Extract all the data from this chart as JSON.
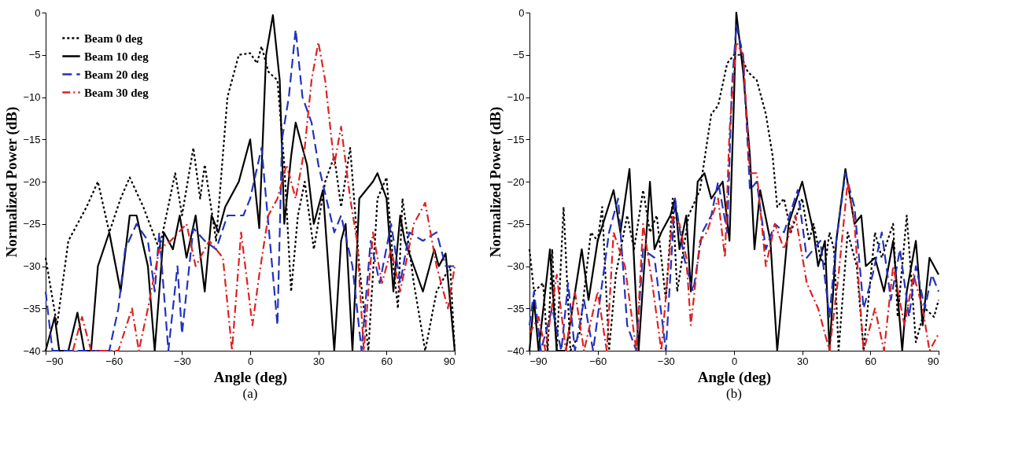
{
  "chart_data": [
    {
      "type": "line",
      "xlabel": "Angle (deg)",
      "ylabel": "Normalized Power (dB)",
      "annotations": [
        "(a)"
      ],
      "xlim": [
        -90,
        90
      ],
      "xticks": [
        -90,
        -60,
        -30,
        0,
        30,
        60,
        90
      ],
      "ylim": [
        -40,
        0
      ],
      "yticks": [
        -40,
        -35,
        -30,
        -25,
        -20,
        -15,
        -10,
        -5,
        0
      ],
      "grid": false,
      "legend": "top left",
      "marker": "none",
      "series": [
        {
          "name": "Beam 0 deg",
          "color": "#000000",
          "line_style": "dotted",
          "x": [
            -90,
            -85,
            -80,
            -76,
            -72,
            -67,
            -62,
            -57,
            -53,
            -47,
            -40,
            -33,
            -30,
            -25,
            -22,
            -20,
            -15,
            -10,
            -5,
            0,
            3,
            5,
            8,
            12,
            15,
            18,
            21,
            24,
            28,
            33,
            37,
            40,
            44,
            48,
            52,
            56,
            60,
            63,
            65,
            67,
            72,
            77,
            82,
            88,
            90
          ],
          "values": [
            -29,
            -37,
            -27,
            -25,
            -23,
            -20,
            -26,
            -22,
            -19.5,
            -23,
            -28,
            -19,
            -24,
            -16,
            -22,
            -18,
            -27,
            -10,
            -5,
            -4.8,
            -6,
            -4,
            -7,
            -8,
            -18,
            -33,
            -24,
            -20,
            -28,
            -20,
            -17,
            -23,
            -16,
            -30,
            -40,
            -22,
            -19.5,
            -30,
            -35,
            -22,
            -32,
            -40,
            -33,
            -30,
            -40
          ]
        },
        {
          "name": "Beam 10 deg",
          "color": "#000000",
          "line_style": "solid",
          "x": [
            -90,
            -86,
            -84,
            -80,
            -76,
            -73,
            -70,
            -67,
            -62,
            -57,
            -53,
            -50,
            -45,
            -42,
            -38,
            -34,
            -31,
            -28,
            -24,
            -20,
            -17,
            -14,
            -11,
            -5,
            0,
            4,
            7,
            10,
            13,
            15,
            18,
            20,
            25,
            28,
            32,
            37,
            40,
            42,
            45,
            48,
            54,
            56,
            60,
            63,
            66,
            68,
            72,
            76,
            81,
            83,
            86,
            90
          ],
          "values": [
            -40,
            -36,
            -40,
            -40,
            -35.5,
            -40,
            -40,
            -30,
            -26,
            -33,
            -24,
            -24,
            -30,
            -40,
            -26,
            -28,
            -24,
            -29,
            -24,
            -33,
            -24,
            -26,
            -23,
            -20,
            -15,
            -25.5,
            -5,
            -0.3,
            -8,
            -25,
            -17,
            -13,
            -18,
            -25,
            -21,
            -40,
            -27,
            -25,
            -40,
            -22,
            -20,
            -19,
            -22,
            -33,
            -24,
            -27,
            -30,
            -33,
            -28,
            -30,
            -28.5,
            -40
          ]
        },
        {
          "name": "Beam 20 deg",
          "color": "#2233bb",
          "line_style": "dashed",
          "x": [
            -90,
            -87,
            -62,
            -58,
            -55,
            -50,
            -45,
            -42,
            -40,
            -36,
            -32,
            -30,
            -25,
            -20,
            -15,
            -10,
            -3,
            0,
            5,
            12,
            14,
            17,
            20,
            23,
            27,
            30,
            37,
            40,
            45,
            49,
            53,
            57,
            62,
            66,
            70,
            76,
            82,
            86,
            90
          ],
          "values": [
            -33,
            -40,
            -40,
            -35,
            -28,
            -25,
            -27,
            -33,
            -26,
            -40,
            -30,
            -38,
            -25.5,
            -27,
            -28,
            -24,
            -24,
            -22,
            -16,
            -37,
            -15,
            -10,
            -2,
            -10,
            -13,
            -18,
            -26,
            -24,
            -30,
            -40,
            -27,
            -32,
            -25,
            -32,
            -26,
            -27,
            -26,
            -30,
            -30
          ]
        },
        {
          "name": "Beam 30 deg",
          "color": "#dd2222",
          "line_style": "dashdot",
          "x": [
            -78,
            -74,
            -70,
            -58,
            -52,
            -49,
            -45,
            -40,
            -35,
            -28,
            -24,
            -18,
            -12,
            -8,
            -4,
            1,
            4,
            8,
            12,
            16,
            20,
            24,
            27,
            30,
            33,
            37,
            40,
            44,
            47,
            50,
            54,
            58,
            62,
            66,
            72,
            77,
            82,
            87,
            90
          ],
          "values": [
            -40,
            -36,
            -40,
            -40,
            -35,
            -40,
            -35,
            -28,
            -27,
            -25,
            -30,
            -27,
            -29,
            -40,
            -26,
            -37,
            -31,
            -24,
            -22,
            -18,
            -22,
            -16,
            -8,
            -3.5,
            -8,
            -18,
            -13.5,
            -22,
            -27,
            -40,
            -26,
            -32,
            -28,
            -33,
            -25,
            -22.5,
            -30,
            -35,
            -30
          ]
        }
      ]
    },
    {
      "type": "line",
      "xlabel": "Angle (deg)",
      "ylabel": "Normalized Power (dB)",
      "annotations": [
        "(b)"
      ],
      "xlim": [
        -90,
        90
      ],
      "xticks": [
        -90,
        -60,
        -30,
        0,
        30,
        60,
        90
      ],
      "ylim": [
        -40,
        0
      ],
      "yticks": [
        -40,
        -35,
        -30,
        -25,
        -20,
        -15,
        -10,
        -5,
        0
      ],
      "grid": false,
      "legend": "top left",
      "marker": "none",
      "series": [
        {
          "name": "Beam 0 deg",
          "color": "#000000",
          "line_style": "dotted",
          "x": [
            -90,
            -88,
            -84,
            -82,
            -80,
            -78,
            -75,
            -72,
            -68,
            -63,
            -60,
            -58,
            -55,
            -52,
            -47,
            -44,
            -40,
            -37,
            -34,
            -30,
            -27,
            -25,
            -20,
            -15,
            -10,
            -7,
            -3,
            0,
            3,
            6,
            10,
            14,
            17,
            19,
            22,
            25,
            30,
            33,
            35,
            38,
            40,
            42,
            44,
            46,
            50,
            54,
            57,
            62,
            65,
            70,
            72,
            76,
            80,
            84,
            88,
            90
          ],
          "values": [
            -28,
            -33,
            -32,
            -40,
            -28,
            -40,
            -23,
            -40,
            -38,
            -26,
            -27,
            -23,
            -40,
            -31,
            -24,
            -28,
            -21,
            -26,
            -24,
            -34,
            -22,
            -33,
            -24,
            -21,
            -12,
            -11,
            -6,
            -5,
            -5,
            -7,
            -8,
            -12,
            -17,
            -23,
            -22,
            -26,
            -22,
            -27,
            -25,
            -29,
            -30,
            -26,
            -28,
            -40,
            -26,
            -30,
            -40,
            -26,
            -29,
            -25,
            -36,
            -24,
            -39,
            -35,
            -36,
            -34
          ]
        },
        {
          "name": "Beam 10 deg",
          "color": "#000000",
          "line_style": "solid",
          "x": [
            -90,
            -88,
            -86,
            -81,
            -78,
            -74,
            -67,
            -64,
            -60,
            -53,
            -50,
            -46,
            -42,
            -37,
            -35,
            -32,
            -28,
            -26,
            -24,
            -21,
            -19,
            -16,
            -13,
            -10,
            -5,
            -2,
            0,
            1,
            4,
            7,
            9,
            11.5,
            16,
            19,
            24,
            30,
            35,
            37,
            40,
            42,
            45,
            49,
            53,
            56,
            58,
            62,
            66,
            70,
            74,
            76,
            80,
            83,
            86,
            90
          ],
          "values": [
            -40,
            -34,
            -40,
            -28,
            -40,
            -40,
            -28,
            -34,
            -27,
            -21,
            -26,
            -18.5,
            -40,
            -20,
            -28,
            -26,
            -24,
            -22,
            -28,
            -24,
            -33,
            -20,
            -19,
            -22,
            -20,
            -27,
            -10,
            0,
            -7,
            -17,
            -28,
            -21,
            -27,
            -40,
            -25,
            -20,
            -26,
            -30,
            -27,
            -40,
            -27,
            -18.5,
            -25,
            -24,
            -30,
            -29,
            -33,
            -27,
            -40,
            -33,
            -27,
            -37,
            -29,
            -31
          ]
        },
        {
          "name": "Beam 20 deg",
          "color": "#2233bb",
          "line_style": "dashed",
          "x": [
            -90,
            -88,
            -85,
            -80,
            -76,
            -73,
            -70,
            -66,
            -62,
            -55,
            -51,
            -47,
            -43,
            -40,
            -35,
            -30,
            -26,
            -22,
            -18,
            -14,
            -10,
            -7,
            -3,
            -1,
            1,
            4,
            7,
            10,
            14,
            18,
            22,
            28,
            32,
            38,
            42,
            45,
            49,
            53,
            57,
            61,
            65,
            69,
            73,
            77,
            80,
            84,
            87,
            90
          ],
          "values": [
            -37,
            -33,
            -40,
            -35,
            -40,
            -32,
            -40,
            -34,
            -40,
            -26,
            -22,
            -37,
            -40,
            -28,
            -29,
            -40,
            -22,
            -29,
            -33,
            -26,
            -24,
            -20,
            -26,
            -9,
            -1.5,
            -5,
            -21,
            -20,
            -28,
            -25,
            -26,
            -21,
            -29,
            -27,
            -36,
            -27,
            -19,
            -23,
            -35,
            -31,
            -26,
            -34,
            -28,
            -36,
            -30,
            -35,
            -31,
            -33
          ]
        },
        {
          "name": "Beam 30 deg",
          "color": "#dd2222",
          "line_style": "dashdot",
          "x": [
            -90,
            -86,
            -83,
            -78,
            -74,
            -70,
            -66,
            -60,
            -56,
            -53,
            -48,
            -43,
            -40,
            -36,
            -32,
            -27,
            -24,
            -21,
            -19,
            -15,
            -12,
            -7,
            -4,
            -2,
            1,
            4,
            7,
            10,
            14,
            18,
            22,
            27,
            32,
            37,
            42,
            46,
            50,
            53,
            57,
            62,
            66,
            70,
            75,
            79,
            83,
            86,
            90
          ],
          "values": [
            -38,
            -36,
            -40,
            -31,
            -40,
            -33,
            -40,
            -33,
            -40,
            -26,
            -30,
            -40,
            -25,
            -32,
            -40,
            -24,
            -25,
            -29,
            -37,
            -27,
            -26,
            -22,
            -29,
            -14,
            -3.5,
            -5,
            -19,
            -19,
            -30,
            -25,
            -28,
            -24,
            -32,
            -35,
            -40,
            -31,
            -20,
            -25,
            -40,
            -35,
            -40,
            -30,
            -37,
            -31,
            -35,
            -40,
            -38
          ]
        }
      ]
    }
  ]
}
